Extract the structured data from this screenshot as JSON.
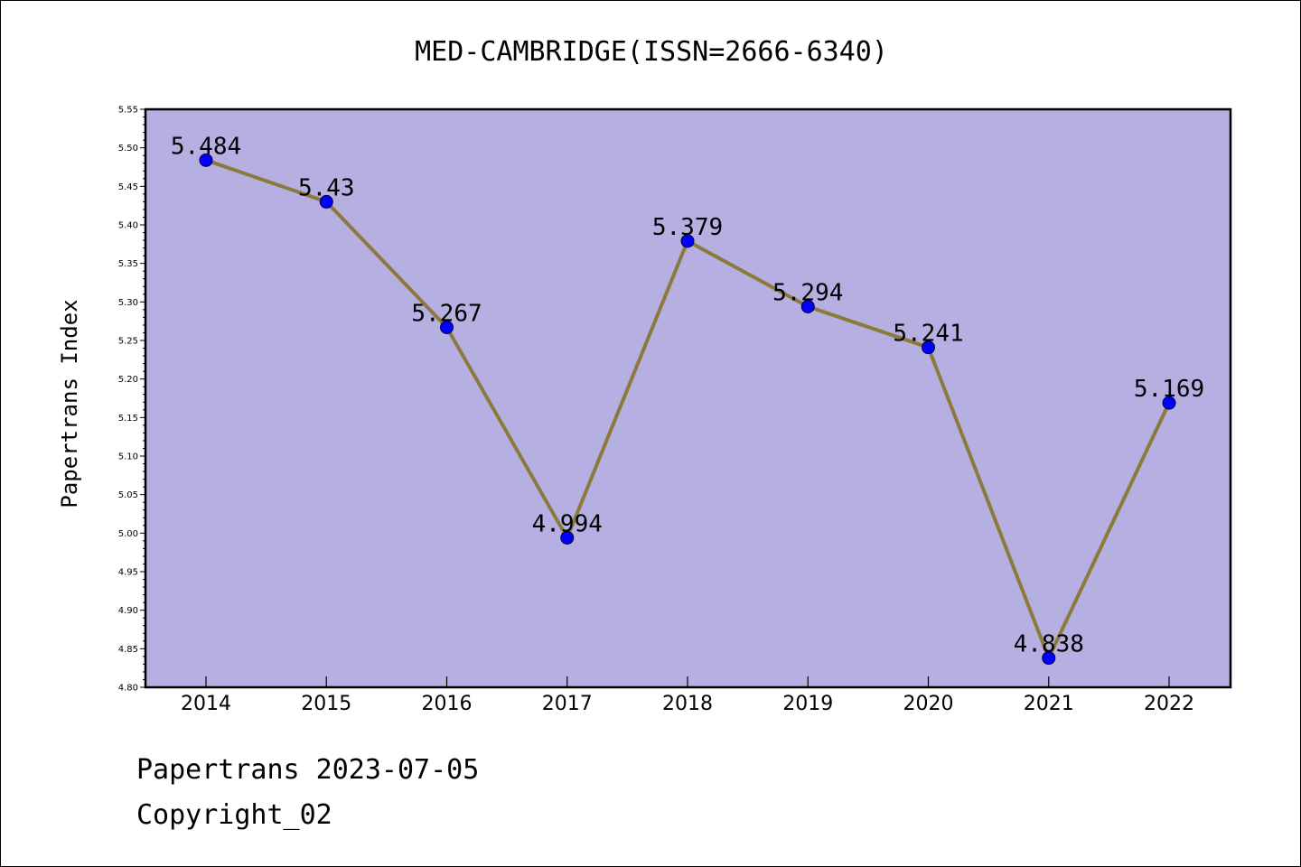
{
  "chart_data": {
    "type": "line",
    "title": "MED-CAMBRIDGE(ISSN=2666-6340)",
    "xlabel": "",
    "ylabel": "Papertrans Index",
    "categories": [
      "2014",
      "2015",
      "2016",
      "2017",
      "2018",
      "2019",
      "2020",
      "2021",
      "2022"
    ],
    "values": [
      5.484,
      5.43,
      5.267,
      4.994,
      5.379,
      5.294,
      5.241,
      4.838,
      5.169
    ],
    "data_labels": [
      "5.484",
      "5.43",
      "5.267",
      "4.994",
      "5.379",
      "5.294",
      "5.241",
      "4.838",
      "5.169"
    ],
    "ylim": [
      4.8,
      5.55
    ],
    "yticks": [
      "4.80",
      "4.85",
      "4.90",
      "4.95",
      "5.00",
      "5.05",
      "5.10",
      "5.15",
      "5.20",
      "5.25",
      "5.30",
      "5.35",
      "5.40",
      "5.45",
      "5.50",
      "5.55"
    ],
    "grid": false,
    "plot_background": "#b5afe2",
    "line_color": "#8b7a3a",
    "marker_color": "#0000ff"
  },
  "footer": {
    "line1": "Papertrans 2023-07-05",
    "line2": "Copyright_02"
  }
}
